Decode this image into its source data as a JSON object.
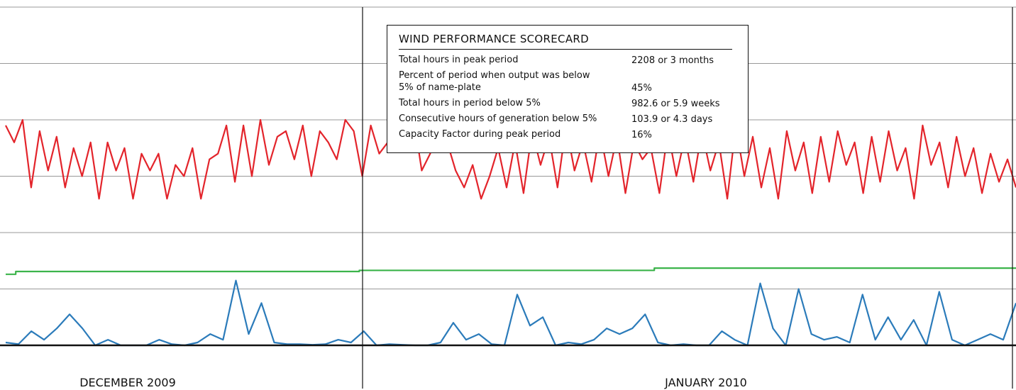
{
  "chart_data": {
    "type": "line",
    "xlim": [
      0,
      100
    ],
    "ylim": [
      0,
      6
    ],
    "yticks": [
      0,
      1,
      2,
      3,
      4,
      5,
      6
    ],
    "grid": true,
    "x_labels": [
      "DECEMBER 2009",
      "JANUARY 2010"
    ],
    "series": [
      {
        "color": "#e3242b",
        "values": [
          3.9,
          3.6,
          4.0,
          2.8,
          3.8,
          3.1,
          3.7,
          2.8,
          3.5,
          3.0,
          3.6,
          2.6,
          3.6,
          3.1,
          3.5,
          2.6,
          3.4,
          3.1,
          3.4,
          2.6,
          3.2,
          3.0,
          3.5,
          2.6,
          3.3,
          3.4,
          3.9,
          2.9,
          3.9,
          3.0,
          4.0,
          3.2,
          3.7,
          3.8,
          3.3,
          3.9,
          3.0,
          3.8,
          3.6,
          3.3,
          4.0,
          3.8,
          3.0,
          3.9,
          3.4,
          3.6,
          4.0,
          3.7,
          4.1,
          3.1,
          3.4,
          4.0,
          3.6,
          3.1,
          2.8,
          3.2,
          2.6,
          3.0,
          3.5,
          2.8,
          3.6,
          2.7,
          3.8,
          3.2,
          3.7,
          2.8,
          3.9,
          3.1,
          3.6,
          2.9,
          3.8,
          3.0,
          3.7,
          2.7,
          3.6,
          3.3,
          3.5,
          2.7,
          3.8,
          3.0,
          3.7,
          2.9,
          3.8,
          3.1,
          3.6,
          2.6,
          3.9,
          3.0,
          3.7,
          2.8,
          3.5,
          2.6,
          3.8,
          3.1,
          3.6,
          2.7,
          3.7,
          2.9,
          3.8,
          3.2,
          3.6,
          2.7,
          3.7,
          2.9,
          3.8,
          3.1,
          3.5,
          2.6,
          3.9,
          3.2,
          3.6,
          2.8,
          3.7,
          3.0,
          3.5,
          2.7,
          3.4,
          2.9,
          3.3,
          2.8
        ]
      },
      {
        "color": "#3cb44b",
        "x": [
          0,
          1,
          1,
          35,
          35,
          64.2,
          64.2,
          100
        ],
        "values": [
          1.26,
          1.26,
          1.31,
          1.31,
          1.33,
          1.33,
          1.37,
          1.37
        ]
      },
      {
        "color": "#2b7bba",
        "values": [
          0.05,
          0.02,
          0.25,
          0.1,
          0.3,
          0.55,
          0.3,
          0.0,
          0.1,
          0.0,
          0.0,
          0.0,
          0.1,
          0.02,
          0.0,
          0.05,
          0.2,
          0.1,
          1.15,
          0.2,
          0.75,
          0.05,
          0.02,
          0.02,
          0.01,
          0.02,
          0.1,
          0.05,
          0.25,
          0.0,
          0.02,
          0.01,
          0.0,
          0.0,
          0.05,
          0.4,
          0.1,
          0.2,
          0.02,
          0.0,
          0.9,
          0.35,
          0.5,
          0.0,
          0.05,
          0.02,
          0.1,
          0.3,
          0.2,
          0.3,
          0.55,
          0.05,
          0.0,
          0.02,
          0.0,
          0.0,
          0.25,
          0.1,
          0.0,
          1.1,
          0.3,
          0.0,
          1.0,
          0.2,
          0.1,
          0.15,
          0.05,
          0.9,
          0.1,
          0.5,
          0.1,
          0.45,
          0.0,
          0.95,
          0.1,
          0.0,
          0.1,
          0.2,
          0.1,
          0.75
        ]
      }
    ],
    "annotation": {
      "title": "WIND PERFORMANCE SCORECARD",
      "rows": [
        [
          "Total hours in peak period",
          "2208 or 3 months"
        ],
        [
          "Percent of period when output was below\n5% of name-plate",
          "45%"
        ],
        [
          "Total hours in period below 5%",
          "982.6 or 5.9 weeks"
        ],
        [
          "Consecutive hours of generation below 5%",
          "103.9 or 4.3 days"
        ],
        [
          "Capacity Factor during peak period",
          "16%"
        ]
      ]
    }
  }
}
